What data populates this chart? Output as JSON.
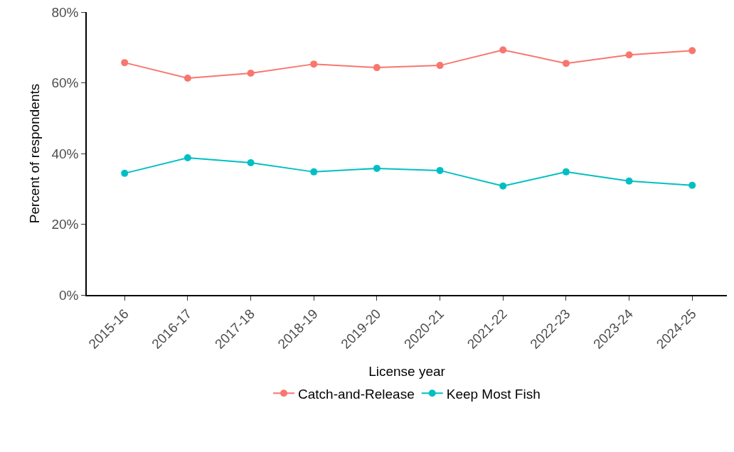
{
  "chart_data": {
    "type": "line",
    "xlabel": "License year",
    "ylabel": "Percent of respondents",
    "categories": [
      "2015-16",
      "2016-17",
      "2017-18",
      "2018-19",
      "2019-20",
      "2020-21",
      "2021-22",
      "2022-23",
      "2023-24",
      "2024-25"
    ],
    "series": [
      {
        "name": "Catch-and-Release",
        "color": "#f8766d",
        "values": [
          65.7,
          61.3,
          62.7,
          65.3,
          64.3,
          64.9,
          69.3,
          65.5,
          67.9,
          69.1
        ]
      },
      {
        "name": "Keep Most Fish",
        "color": "#00bfc4",
        "values": [
          34.4,
          38.8,
          37.4,
          34.8,
          35.8,
          35.2,
          30.8,
          34.8,
          32.2,
          31.0
        ]
      }
    ],
    "ylim": [
      0,
      80
    ],
    "yticks": [
      {
        "value": 0,
        "label": "0%"
      },
      {
        "value": 20,
        "label": "20%"
      },
      {
        "value": 40,
        "label": "40%"
      },
      {
        "value": 60,
        "label": "60%"
      },
      {
        "value": 80,
        "label": "80%"
      }
    ],
    "grid": false,
    "legend": "bottom",
    "marker": "circle",
    "line_style": "solid"
  }
}
